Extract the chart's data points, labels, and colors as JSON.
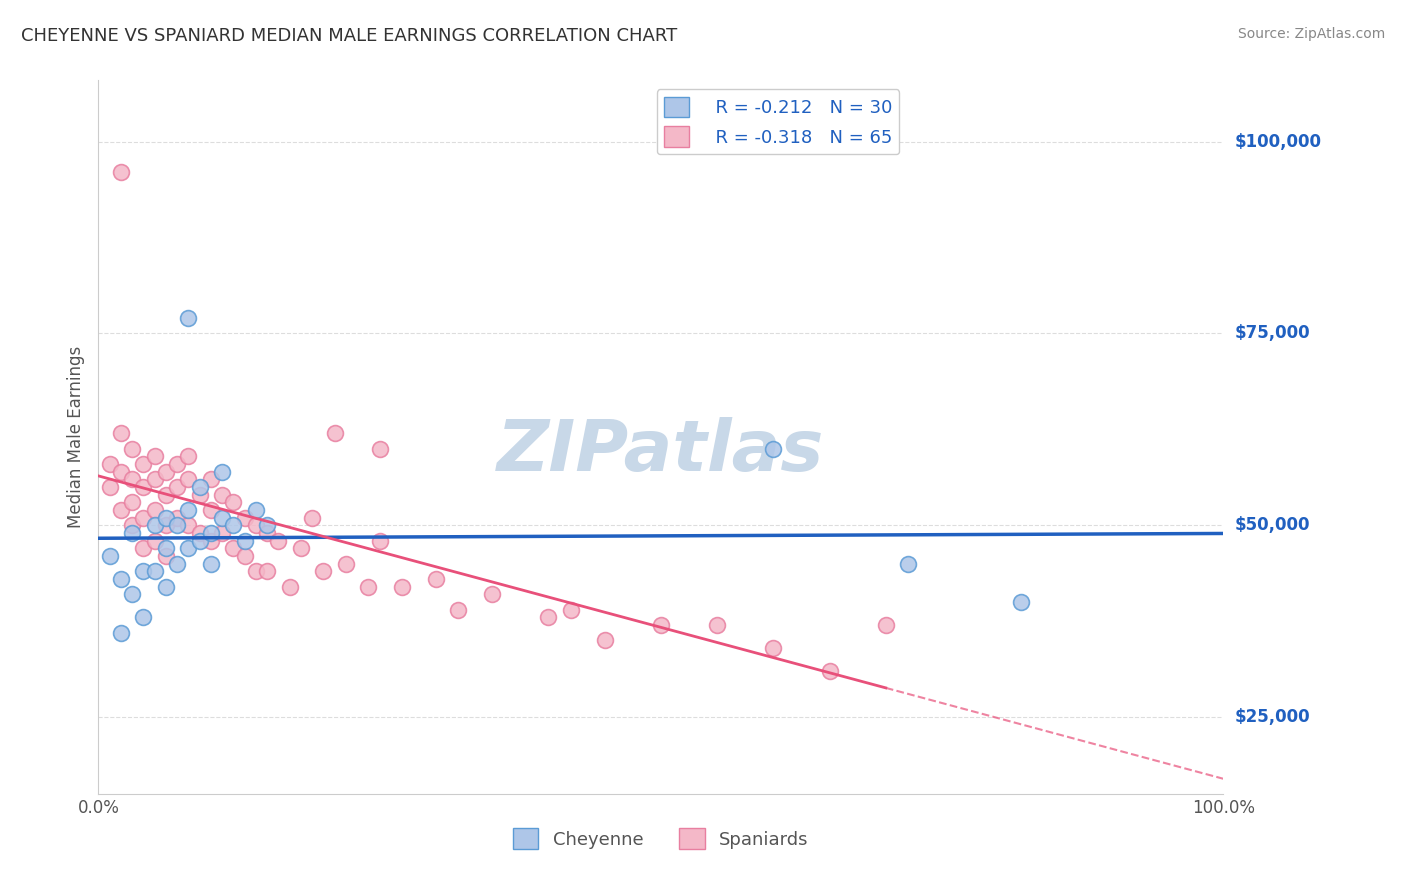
{
  "title": "CHEYENNE VS SPANIARD MEDIAN MALE EARNINGS CORRELATION CHART",
  "source_text": "Source: ZipAtlas.com",
  "ylabel": "Median Male Earnings",
  "xlim": [
    0,
    1
  ],
  "ylim": [
    15000,
    108000
  ],
  "yticks": [
    25000,
    50000,
    75000,
    100000
  ],
  "ytick_labels": [
    "$25,000",
    "$50,000",
    "$75,000",
    "$100,000"
  ],
  "xtick_labels": [
    "0.0%",
    "100.0%"
  ],
  "background_color": "#ffffff",
  "grid_color": "#dddddd",
  "cheyenne_color": "#aec6e8",
  "cheyenne_edge_color": "#5b9bd5",
  "spaniard_color": "#f4b8c8",
  "spaniard_edge_color": "#e87fa0",
  "cheyenne_line_color": "#2060c0",
  "spaniard_line_color": "#e8507a",
  "R_cheyenne": -0.212,
  "N_cheyenne": 30,
  "R_spaniard": -0.318,
  "N_spaniard": 65,
  "cheyenne_x": [
    0.01,
    0.02,
    0.02,
    0.03,
    0.03,
    0.04,
    0.04,
    0.05,
    0.05,
    0.06,
    0.06,
    0.06,
    0.07,
    0.07,
    0.08,
    0.08,
    0.09,
    0.1,
    0.1,
    0.11,
    0.12,
    0.13,
    0.14,
    0.15,
    0.08,
    0.09,
    0.11,
    0.6,
    0.72,
    0.82
  ],
  "cheyenne_y": [
    46000,
    36000,
    43000,
    49000,
    41000,
    44000,
    38000,
    50000,
    44000,
    51000,
    47000,
    42000,
    50000,
    45000,
    52000,
    47000,
    48000,
    49000,
    45000,
    51000,
    50000,
    48000,
    52000,
    50000,
    77000,
    55000,
    57000,
    60000,
    45000,
    40000
  ],
  "spaniard_x": [
    0.01,
    0.01,
    0.02,
    0.02,
    0.02,
    0.03,
    0.03,
    0.03,
    0.03,
    0.04,
    0.04,
    0.04,
    0.04,
    0.05,
    0.05,
    0.05,
    0.05,
    0.06,
    0.06,
    0.06,
    0.06,
    0.07,
    0.07,
    0.07,
    0.08,
    0.08,
    0.08,
    0.09,
    0.09,
    0.1,
    0.1,
    0.1,
    0.11,
    0.11,
    0.12,
    0.12,
    0.13,
    0.13,
    0.14,
    0.14,
    0.15,
    0.15,
    0.16,
    0.17,
    0.18,
    0.19,
    0.2,
    0.21,
    0.22,
    0.24,
    0.25,
    0.27,
    0.3,
    0.32,
    0.35,
    0.4,
    0.42,
    0.45,
    0.5,
    0.55,
    0.6,
    0.65,
    0.7,
    0.02,
    0.25
  ],
  "spaniard_y": [
    55000,
    58000,
    57000,
    52000,
    62000,
    56000,
    53000,
    60000,
    50000,
    58000,
    55000,
    51000,
    47000,
    59000,
    56000,
    52000,
    48000,
    57000,
    54000,
    50000,
    46000,
    58000,
    55000,
    51000,
    59000,
    56000,
    50000,
    54000,
    49000,
    56000,
    52000,
    48000,
    54000,
    49000,
    53000,
    47000,
    51000,
    46000,
    50000,
    44000,
    49000,
    44000,
    48000,
    42000,
    47000,
    51000,
    44000,
    62000,
    45000,
    42000,
    48000,
    42000,
    43000,
    39000,
    41000,
    38000,
    39000,
    35000,
    37000,
    37000,
    34000,
    31000,
    37000,
    96000,
    60000
  ],
  "watermark_text": "ZIPatlas",
  "watermark_color": "#c8d8e8"
}
